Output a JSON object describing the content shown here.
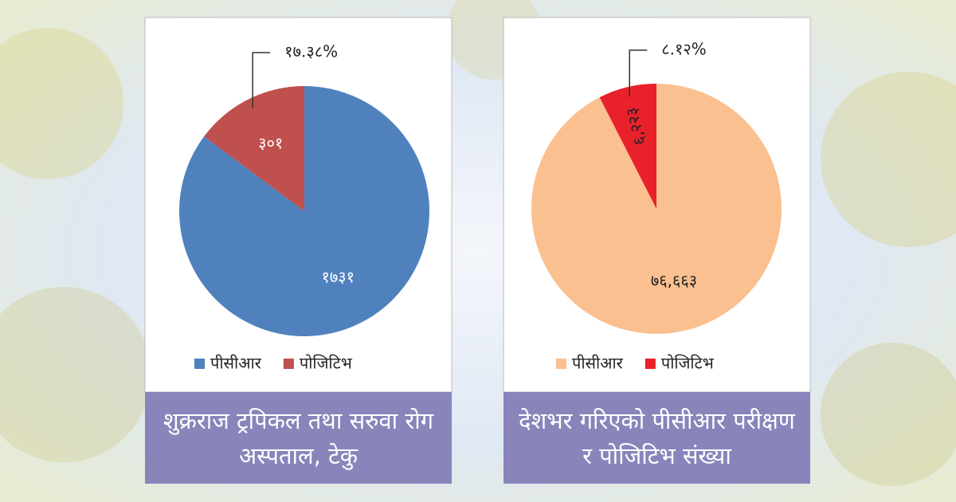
{
  "chart_data": [
    {
      "type": "pie",
      "title": "शुक्रराज ट्रपिकल तथा सरुवा रोग अस्पताल, टेकु",
      "categories": [
        "पीसीआर",
        "पोजिटिभ"
      ],
      "values": [
        1731,
        301
      ],
      "value_labels": [
        "१७३१",
        "३०१"
      ],
      "colors": [
        "#4f81bd",
        "#c0504d"
      ],
      "label_colors": [
        "#ffffff",
        "#ffffff"
      ],
      "annotation": "१७.३८%",
      "legend": "bottom"
    },
    {
      "type": "pie",
      "title": "देशभर गरिएको पीसीआर परीक्षण र पोजिटिभ संख्या",
      "categories": [
        "पीसीआर",
        "पोजिटिभ"
      ],
      "values": [
        76663,
        6223
      ],
      "value_labels": [
        "७६,६६३",
        "६,२२३"
      ],
      "colors": [
        "#fac090",
        "#e8212b"
      ],
      "label_colors": [
        "#222222",
        "#222222"
      ],
      "annotation": "८.१२%",
      "legend": "bottom"
    }
  ]
}
